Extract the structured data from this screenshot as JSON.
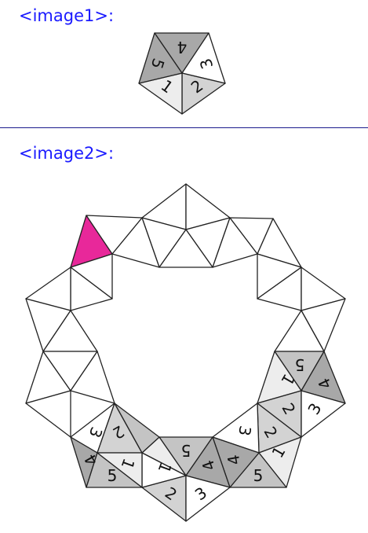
{
  "captions": {
    "image1": "<image1>:",
    "image2": "<image2>:"
  },
  "colors": {
    "white": "#ffffff",
    "light": "#ededed",
    "mid": "#d3d3d3",
    "dark": "#a8a8a8",
    "highlight": "#e8289a",
    "caption": "#1a1aff"
  },
  "pentagon": {
    "faces": [
      {
        "label": "4",
        "shade": "dark"
      },
      {
        "label": "3",
        "shade": "white"
      },
      {
        "label": "2",
        "shade": "mid"
      },
      {
        "label": "1",
        "shade": "light"
      },
      {
        "label": "5",
        "shade": "dark"
      }
    ]
  },
  "ring": {
    "labels": {
      "right_upper": [
        "5",
        "4",
        "1",
        "2",
        "3"
      ],
      "bottom_right": [
        "1",
        "2",
        "3",
        "4",
        "5"
      ],
      "bottom_middle": [
        "5",
        "4",
        "1",
        "2",
        "3"
      ],
      "bottom_left": [
        "3",
        "2",
        "1",
        "4",
        "5"
      ]
    },
    "highlighted_face": "top-left outer triangle"
  }
}
